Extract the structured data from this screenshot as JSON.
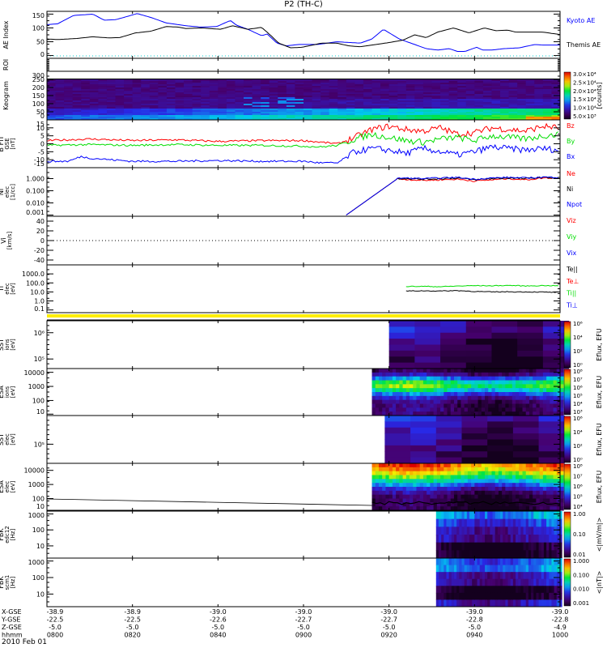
{
  "title": "P2 (TH-C)",
  "date": "2010 Feb 01",
  "chart_data": {
    "type": "multi-panel",
    "x_range_minutes": [
      0,
      120
    ],
    "panels": [
      {
        "id": "ae",
        "ylabel": "AE Index",
        "ylim": [
          -10,
          160
        ],
        "ticks": [
          "150",
          "100",
          "50",
          "0"
        ],
        "tickvals": [
          150,
          100,
          50,
          0
        ],
        "type": "line",
        "series": [
          {
            "name": "Kyoto AE",
            "color": "#0000ff",
            "t": [
              0,
              2.5,
              6.2,
              10.7,
              13.4,
              16.1,
              18.9,
              21.1,
              24.3,
              27.9,
              32.5,
              36.1,
              39.7,
              42.9,
              44.3,
              47,
              50.2,
              51.5,
              53.8,
              56,
              58.8,
              63.3,
              67.8,
              73.3,
              76,
              78.7,
              82.4,
              85.1,
              88.7,
              91.4,
              94.1,
              96,
              97.8,
              100.5,
              101.9,
              104.1,
              106.8,
              110.5,
              114.1,
              115.9,
              120
            ],
            "y": [
              112,
              115,
              145,
              150,
              128,
              130,
              142,
              152,
              138,
              118,
              108,
              103,
              105,
              127,
              110,
              95,
              72,
              78,
              45,
              35,
              40,
              40,
              50,
              45,
              60,
              95,
              60,
              45,
              25,
              20,
              25,
              15,
              15,
              30,
              20,
              20,
              25,
              28,
              40,
              38,
              38
            ]
          },
          {
            "name": "Themis AE",
            "color": "#000000",
            "t": [
              0,
              2.5,
              7.1,
              10.7,
              14.3,
              17,
              20.7,
              24.3,
              27.9,
              30.7,
              32.5,
              36.1,
              40.6,
              43.4,
              47,
              50.2,
              52.4,
              54.2,
              57,
              59.7,
              64.2,
              67.8,
              70.6,
              73.3,
              76.9,
              79.6,
              83.3,
              86,
              88.7,
              91.4,
              95.1,
              98.7,
              102.3,
              105,
              107.8,
              109.6,
              115.9,
              120
            ],
            "y": [
              60,
              58,
              62,
              68,
              64,
              65,
              82,
              88,
              105,
              103,
              98,
              100,
              95,
              108,
              95,
              102,
              72,
              45,
              28,
              30,
              45,
              45,
              35,
              32,
              40,
              46,
              56,
              75,
              65,
              85,
              100,
              82,
              100,
              90,
              92,
              85,
              85,
              76
            ]
          }
        ]
      },
      {
        "id": "roi",
        "ylabel": "ROI",
        "type": "flags",
        "ticks": []
      },
      {
        "id": "keogram",
        "ylabel": "Keogram",
        "ylim": [
          0,
          300
        ],
        "ticks": [
          "300",
          "250",
          "200",
          "150",
          "100",
          "50",
          "0"
        ],
        "tickvals": [
          300,
          250,
          200,
          150,
          100,
          50,
          0
        ],
        "type": "heatmap",
        "colorbar": {
          "label": "[counts]",
          "ticks": [
            "3.0×10⁴",
            "2.5×10⁴",
            "2.0×10⁴",
            "1.5×10⁴",
            "1.0×10⁴",
            "5.0×10³"
          ]
        }
      },
      {
        "id": "bfit",
        "ylabel": "B FIT",
        "ylabel2": "GSE",
        "ylabel3": "[nT]",
        "ylim": [
          -15,
          15
        ],
        "ticks": [
          "15",
          "10",
          "5",
          "0",
          "-5",
          "-10",
          "-15"
        ],
        "tickvals": [
          15,
          10,
          5,
          0,
          -5,
          -10,
          -15
        ],
        "type": "line",
        "series": [
          {
            "name": "Bz",
            "color": "#ff0000",
            "t": [
              0,
              10,
              20,
              30,
              40,
              50,
              60,
              64,
              68,
              72,
              76,
              80,
              84,
              88,
              92,
              96,
              100,
              104,
              108,
              112,
              116,
              120
            ],
            "y": [
              2,
              3,
              2,
              2.5,
              1.5,
              2,
              2,
              1,
              0,
              4,
              9,
              11,
              9,
              8,
              10,
              6,
              7,
              10,
              9,
              8,
              11,
              10
            ]
          },
          {
            "name": "By",
            "color": "#00dd00",
            "t": [
              0,
              10,
              20,
              30,
              40,
              50,
              60,
              64,
              68,
              72,
              76,
              80,
              84,
              88,
              92,
              96,
              100,
              104,
              108,
              112,
              116,
              120
            ],
            "y": [
              -1,
              -0.5,
              -1,
              -0.5,
              -1,
              -1,
              -1.5,
              -2,
              -1,
              3,
              6,
              4,
              2,
              1,
              3,
              4,
              2,
              5,
              4,
              3,
              5,
              6
            ]
          },
          {
            "name": "Bx",
            "color": "#0000ff",
            "t": [
              0,
              5,
              8,
              10,
              20,
              30,
              40,
              50,
              60,
              64,
              68,
              72,
              76,
              80,
              84,
              88,
              92,
              96,
              100,
              104,
              108,
              112,
              116,
              120
            ],
            "y": [
              -11,
              -11,
              -8,
              -9,
              -11,
              -11,
              -10.5,
              -11,
              -11,
              -12,
              -12,
              -5,
              -3,
              -4,
              -6,
              -3,
              -5,
              -7,
              -5,
              -2,
              -3,
              -4,
              -3,
              -4
            ]
          }
        ]
      },
      {
        "id": "ni",
        "ylabel": "Ni",
        "ylabel2": "elec",
        "ylabel3": "[1/cc]",
        "ylim": [
          -3.1,
          0.9
        ],
        "log": true,
        "ticks": [
          "1.000",
          "0.100",
          "0.010",
          "0.001"
        ],
        "tickvals": [
          0,
          -1,
          -2,
          -3
        ],
        "type": "line",
        "series": [
          {
            "name": "Ne",
            "color": "#ff0000",
            "t": [
              70,
              82,
              83,
              88,
              92,
              96,
              100,
              104,
              108,
              112,
              116,
              120
            ],
            "y": [
              -3,
              0,
              -0.05,
              -0.15,
              -0.1,
              -0.05,
              -0.2,
              -0.1,
              0,
              -0.1,
              0.05,
              0.05
            ]
          },
          {
            "name": "Ni",
            "color": "#000000",
            "t": [
              70,
              82,
              83,
              88,
              92,
              96,
              100,
              104,
              108,
              112,
              116,
              120
            ],
            "y": [
              -3,
              0,
              0.02,
              -0.05,
              0,
              0.05,
              -0.1,
              0,
              0.05,
              0,
              0.1,
              0.05
            ]
          },
          {
            "name": "Npot",
            "color": "#0000ff",
            "t": [
              70,
              82,
              83,
              88,
              92,
              96,
              100,
              104,
              108,
              112,
              116,
              120
            ],
            "y": [
              -3,
              0,
              0.05,
              0,
              0.05,
              0.1,
              -0.05,
              0.05,
              0.1,
              0.05,
              0.12,
              0.1
            ]
          }
        ]
      },
      {
        "id": "vi",
        "ylabel": "Vi",
        "ylabel3": "[km/s]",
        "ylim": [
          -50,
          50
        ],
        "ticks": [
          "40",
          "20",
          "0",
          "-20",
          "-40"
        ],
        "tickvals": [
          40,
          20,
          0,
          -20,
          -40
        ],
        "type": "line",
        "legend": [
          {
            "name": "Viz",
            "color": "#ff0000"
          },
          {
            "name": "Viy",
            "color": "#00dd00"
          },
          {
            "name": "Vix",
            "color": "#0000ff"
          }
        ],
        "series": []
      },
      {
        "id": "ti",
        "ylabel": "Ti",
        "ylabel2": "elec",
        "ylabel3": "[eV]",
        "ylim": [
          -1.3,
          4
        ],
        "log": true,
        "ticks": [
          "1000.0",
          "100.0",
          "10.0",
          "1.0",
          "0.1"
        ],
        "tickvals": [
          3,
          2,
          1,
          0,
          -1
        ],
        "type": "line",
        "legend": [
          {
            "name": "Te||",
            "color": "#000000"
          },
          {
            "name": "Te⊥",
            "color": "#ff0000"
          },
          {
            "name": "Ti||",
            "color": "#00dd00"
          },
          {
            "name": "Ti⊥",
            "color": "#0000ff"
          }
        ],
        "series": [
          {
            "name": "green",
            "color": "#00dd00",
            "t": [
              84,
              88,
              92,
              96,
              100,
              104,
              108,
              112,
              116,
              120
            ],
            "y": [
              1.6,
              1.62,
              1.58,
              1.65,
              1.7,
              1.68,
              1.72,
              1.66,
              1.7,
              1.68
            ]
          },
          {
            "name": "black",
            "color": "#000000",
            "t": [
              84,
              88,
              92,
              96,
              100,
              104,
              108,
              112,
              116,
              120
            ],
            "y": [
              1.1,
              1.12,
              1.1,
              1.15,
              1.05,
              1.0,
              1.02,
              1.0,
              0.98,
              0.95
            ]
          }
        ]
      },
      {
        "id": "sst_i",
        "ylabel": "SST",
        "ylabel2": "ions",
        "ylabel3": "[eV]",
        "ticks": [
          "10⁶",
          "10⁵"
        ],
        "tickpos": [
          0.25,
          0.8
        ],
        "type": "heatmap",
        "start": 80,
        "levels": [
          0.15,
          0.2,
          0.15,
          0.1,
          0.08,
          0.05,
          0.03,
          0.02
        ],
        "colorbar": {
          "label": "Eflux, EFU",
          "ticks": [
            "10⁶",
            "10⁴",
            "10²",
            "10⁰"
          ]
        }
      },
      {
        "id": "esa_i",
        "ylabel": "ESA",
        "ylabel2": "ions",
        "ylabel3": "[eV]",
        "ticks": [
          "10000",
          "1000",
          "100",
          "10"
        ],
        "tickpos": [
          0.08,
          0.38,
          0.68,
          0.97
        ],
        "type": "heatmap",
        "start": 76,
        "levels": [
          0.05,
          0.15,
          0.35,
          0.55,
          0.62,
          0.5,
          0.32,
          0.2,
          0.12,
          0.08,
          0.1,
          0.08
        ],
        "colorbar": {
          "label": "Eflux, EFU",
          "ticks": [
            "10⁸",
            "10⁷",
            "10⁶",
            "10⁵",
            "10⁴",
            "10³"
          ]
        }
      },
      {
        "id": "sst_e",
        "ylabel": "SST",
        "ylabel2": "elec",
        "ylabel3": "[eV]",
        "ticks": [
          "10⁵"
        ],
        "tickpos": [
          0.6
        ],
        "type": "heatmap",
        "start": 79,
        "levels": [
          0.22,
          0.18,
          0.15,
          0.12,
          0.1,
          0.08,
          0.06,
          0.05
        ],
        "colorbar": {
          "label": "Eflux, EFU",
          "ticks": [
            "10⁶",
            "10⁴",
            "10²",
            "10⁰"
          ]
        }
      },
      {
        "id": "esa_e",
        "ylabel": "ESA",
        "ylabel2": "elec",
        "ylabel3": "[eV]",
        "ticks": [
          "10000",
          "1000",
          "100",
          "10"
        ],
        "tickpos": [
          0.15,
          0.45,
          0.75,
          1.0
        ],
        "type": "heatmap",
        "start": 76,
        "levels": [
          0.88,
          0.82,
          0.72,
          0.6,
          0.48,
          0.35,
          0.22,
          0.12,
          0.06,
          0.05,
          0.04,
          0.04
        ],
        "colorbar": {
          "label": "Eflux, EFU",
          "ticks": [
            "10⁸",
            "10⁷",
            "10⁶",
            "10⁵",
            "10⁴"
          ]
        }
      },
      {
        "id": "fbk1",
        "ylabel": "FBK",
        "ylabel2": "edc12",
        "ylabel3": "[Hz]",
        "ticks": [
          "1000",
          "100",
          "10"
        ],
        "tickpos": [
          0.06,
          0.4,
          0.74
        ],
        "type": "heatmap",
        "start": 91,
        "levels": [
          0.42,
          0.3,
          0.22,
          0.2,
          0.01,
          0.0
        ],
        "colorbar": {
          "label": "<|mV/m|>",
          "ticks": [
            "1.00",
            "0.10",
            "0.01"
          ]
        }
      },
      {
        "id": "fbk2",
        "ylabel": "FBK",
        "ylabel2": "scm1",
        "ylabel3": "[Hz]",
        "ticks": [
          "1000",
          "100",
          "10"
        ],
        "tickpos": [
          0.06,
          0.4,
          0.74
        ],
        "type": "heatmap",
        "start": 91,
        "levels": [
          0.35,
          0.38,
          0.22,
          0.2,
          0.01,
          0.01,
          0.23
        ],
        "colorbar": {
          "label": "<|nT|>",
          "ticks": [
            "1.000",
            "0.100",
            "0.010",
            "0.001"
          ]
        }
      }
    ],
    "legend_ae": [
      {
        "name": "Kyoto AE",
        "color": "#0000ff"
      },
      {
        "name": "Themis AE",
        "color": "#000000"
      }
    ],
    "legend_b": [
      {
        "name": "Bz",
        "color": "#ff0000"
      },
      {
        "name": "By",
        "color": "#00dd00"
      },
      {
        "name": "Bx",
        "color": "#0000ff"
      }
    ],
    "legend_n": [
      {
        "name": "Ne",
        "color": "#ff0000"
      },
      {
        "name": "Ni",
        "color": "#000000"
      },
      {
        "name": "Npot",
        "color": "#0000ff"
      }
    ],
    "footer": {
      "row_labels": [
        "X-GSE",
        "Y-GSE",
        "Z-GSE",
        "hhmm"
      ],
      "columns": [
        [
          "-38.9",
          "-22.5",
          "-5.0",
          "0800"
        ],
        [
          "-38.9",
          "-22.5",
          "-5.0",
          "0820"
        ],
        [
          "-39.0",
          "-22.6",
          "-5.0",
          "0840"
        ],
        [
          "-39.0",
          "-22.7",
          "-5.0",
          "0900"
        ],
        [
          "-39.0",
          "-22.7",
          "-5.0",
          "0920"
        ],
        [
          "-39.0",
          "-22.8",
          "-5.0",
          "0940"
        ],
        [
          "-39.0",
          "-22.8",
          "-4.9",
          "1000"
        ]
      ]
    }
  }
}
